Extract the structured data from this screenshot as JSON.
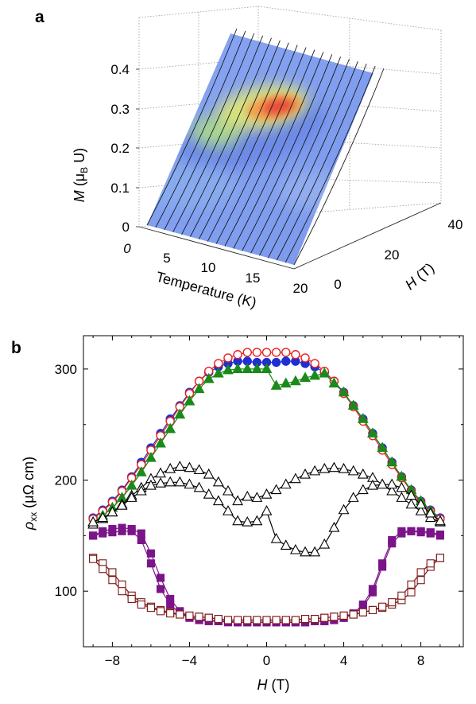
{
  "panel_a": {
    "label": "a",
    "chart_data": {
      "type": "surface",
      "z_axis": {
        "label_italic": "M",
        "label_rest": " (μ",
        "label_sub": "B",
        "label_tail": " U)",
        "range": [
          0,
          0.4
        ],
        "ticks": [
          "0",
          "0.1",
          "0.2",
          "0.3",
          "0.4"
        ]
      },
      "x_axis": {
        "label": "Temperature (K)",
        "range": [
          0,
          20
        ],
        "ticks": [
          "0",
          "5",
          "10",
          "15",
          "20"
        ]
      },
      "y_axis": {
        "label_italic": "H",
        "label_rest": " (T)",
        "range": [
          0,
          40
        ],
        "ticks": [
          "0",
          "20",
          "40"
        ]
      }
    }
  },
  "panel_b": {
    "label": "b",
    "chart_data": {
      "type": "line",
      "xlabel_italic": "H",
      "xlabel_rest": " (T)",
      "ylabel_italic": "ρ",
      "ylabel_sub": "xx",
      "ylabel_rest": " (μΩ cm)",
      "xlim": [
        -9.5,
        10.2
      ],
      "ylim": [
        50,
        330
      ],
      "xticks": [
        -8,
        -4,
        0,
        4,
        8
      ],
      "xtick_labels": [
        "−8",
        "−4",
        "0",
        "4",
        "8"
      ],
      "yticks": [
        100,
        200,
        300
      ],
      "ytick_labels": [
        "100",
        "200",
        "300"
      ],
      "series": [
        {
          "marker": "circle",
          "fill": true,
          "color": "#1f2fd1",
          "x": [
            -9,
            -8.5,
            -8,
            -7.5,
            -7,
            -6.5,
            -6,
            -5.5,
            -5,
            -4.5,
            -4,
            -3.5,
            -3,
            -2.5,
            -2,
            -1.5,
            -1,
            -0.5,
            0,
            0.5,
            1,
            1.5,
            2,
            2.5,
            3,
            3.5,
            4,
            4.5,
            5,
            5.5,
            6,
            6.5,
            7,
            7.5,
            8,
            8.5,
            9
          ],
          "y": [
            166,
            173,
            181,
            191,
            203,
            216,
            229,
            242,
            255,
            267,
            279,
            289,
            297,
            302,
            305,
            307,
            307,
            306,
            306,
            306,
            307,
            307,
            305,
            302,
            297,
            289,
            279,
            267,
            255,
            242,
            229,
            216,
            203,
            191,
            181,
            173,
            166
          ]
        },
        {
          "marker": "circle",
          "fill": false,
          "color": "#e8201e",
          "x": [
            -9,
            -8.5,
            -8,
            -7.5,
            -7,
            -6.5,
            -6,
            -5.5,
            -5,
            -4.5,
            -4,
            -3.5,
            -3,
            -2.5,
            -2,
            -1.5,
            -1,
            -0.5,
            0,
            0.5,
            1,
            1.5,
            2,
            2.5,
            3,
            3.5,
            4,
            4.5,
            5,
            5.5,
            6,
            6.5,
            7,
            7.5,
            8,
            8.5,
            9
          ],
          "y": [
            165,
            172,
            180,
            190,
            202,
            214,
            227,
            240,
            253,
            266,
            278,
            289,
            298,
            305,
            310,
            313,
            315,
            315,
            315,
            315,
            315,
            313,
            310,
            305,
            298,
            289,
            278,
            266,
            253,
            240,
            227,
            214,
            202,
            190,
            180,
            172,
            165
          ]
        },
        {
          "marker": "triangle",
          "fill": true,
          "color": "#1a8a1a",
          "x": [
            -9,
            -8.5,
            -8,
            -7.5,
            -7,
            -6.5,
            -6,
            -5.5,
            -5,
            -4.5,
            -4,
            -3.5,
            -3,
            -2.5,
            -2,
            -1.5,
            -1,
            -0.5,
            0,
            0.5,
            1,
            1.5,
            2,
            2.5,
            3,
            3.5,
            4,
            4.5,
            5,
            5.5,
            6,
            6.5,
            7,
            7.5,
            8,
            8.5,
            9
          ],
          "y": [
            162,
            168,
            175,
            184,
            195,
            207,
            220,
            233,
            246,
            259,
            271,
            282,
            291,
            296,
            299,
            300,
            300,
            300,
            300,
            285,
            287,
            289,
            292,
            294,
            296,
            287,
            279,
            267,
            255,
            242,
            229,
            216,
            203,
            191,
            181,
            172,
            163
          ]
        },
        {
          "marker": "triangle",
          "fill": false,
          "color": "#000000",
          "x": [
            -9,
            -8.5,
            -8,
            -7.5,
            -7,
            -6.5,
            -6,
            -5.5,
            -5,
            -4.5,
            -4,
            -3.5,
            -3,
            -2.5,
            -2,
            -1.5,
            -1,
            -0.5,
            0,
            0.5,
            1,
            1.5,
            2,
            2.5,
            3,
            3.5,
            4,
            4.5,
            5,
            5.5,
            6,
            6.5,
            7,
            7.5,
            8,
            8.5,
            9
          ],
          "y": [
            160,
            165,
            171,
            178,
            186,
            193,
            201,
            206,
            210,
            212,
            211,
            209,
            205,
            198,
            190,
            181,
            185,
            184,
            187,
            191,
            196,
            201,
            205,
            208,
            210,
            211,
            210,
            208,
            205,
            202,
            196,
            190,
            184,
            178,
            172,
            166,
            162
          ]
        },
        {
          "marker": "triangle",
          "fill": false,
          "color": "#000000",
          "x": [
            -9,
            -8.5,
            -8,
            -7.5,
            -7,
            -6.5,
            -6,
            -5.5,
            -5,
            -4.5,
            -4,
            -3.5,
            -3,
            -2.5,
            -2,
            -1.5,
            -1,
            -0.5,
            0,
            0.5,
            1,
            1.5,
            2,
            2.5,
            3,
            3.5,
            4,
            4.5,
            5,
            5.5,
            6,
            6.5,
            7,
            7.5,
            8,
            8.5,
            9
          ],
          "y": [
            162,
            166,
            171,
            177,
            184,
            190,
            195,
            197,
            198,
            198,
            196,
            193,
            187,
            181,
            172,
            163,
            162,
            163,
            172,
            147,
            141,
            137,
            135,
            135,
            142,
            157,
            173,
            184,
            191,
            195,
            196,
            196,
            193,
            186,
            178,
            170,
            163
          ]
        },
        {
          "marker": "square",
          "fill": true,
          "color": "#7b1488",
          "x": [
            -9,
            -8.5,
            -8,
            -7.5,
            -7,
            -6.5,
            -6,
            -5.5,
            -5,
            -4.5,
            -4,
            -3.5,
            -3,
            -2.5,
            -2,
            -1.5,
            -1,
            -0.5,
            0,
            0.5,
            1,
            1.5,
            2,
            2.5,
            3,
            3.5,
            4,
            4.5,
            5,
            5.5,
            6,
            6.5,
            7,
            7.5,
            8,
            8.5,
            9
          ],
          "y": [
            150,
            152,
            153,
            154,
            154,
            146,
            125,
            102,
            88,
            80,
            76,
            74,
            73,
            73,
            72,
            72,
            72,
            72,
            72,
            72,
            72,
            72,
            72,
            73,
            73,
            74,
            76,
            80,
            88,
            102,
            125,
            146,
            154,
            154,
            153,
            152,
            150
          ]
        },
        {
          "marker": "square",
          "fill": true,
          "color": "#7b1488",
          "x": [
            -9,
            -8.5,
            -8,
            -7.5,
            -7,
            -6.5,
            -6,
            -5.5,
            -5,
            -4.5,
            -4,
            -3.5,
            -3,
            -2.5,
            -2,
            -1.5,
            -1,
            -0.5,
            0,
            0.5,
            1,
            1.5,
            2,
            2.5,
            3,
            3.5,
            4,
            4.5,
            5,
            5.5,
            6,
            6.5,
            7,
            7.5,
            8,
            8.5,
            9
          ],
          "y": [
            150,
            154,
            156,
            157,
            156,
            152,
            134,
            112,
            93,
            82,
            77,
            75,
            74,
            73,
            73,
            72,
            72,
            72,
            72,
            72,
            72,
            72,
            72,
            73,
            73,
            74,
            76,
            79,
            86,
            99,
            122,
            143,
            152,
            154,
            154,
            153,
            151
          ]
        },
        {
          "marker": "square",
          "fill": false,
          "color": "#7a1717",
          "x": [
            -9,
            -8.5,
            -8,
            -7.5,
            -7,
            -6.5,
            -6,
            -5.5,
            -5,
            -4.5,
            -4,
            -3.5,
            -3,
            -2.5,
            -2,
            -1.5,
            -1,
            -0.5,
            0,
            0.5,
            1,
            1.5,
            2,
            2.5,
            3,
            3.5,
            4,
            4.5,
            5,
            5.5,
            6,
            6.5,
            7,
            7.5,
            8,
            8.5,
            9
          ],
          "y": [
            130,
            125,
            117,
            106,
            96,
            90,
            86,
            83,
            81,
            79,
            78,
            77,
            76,
            75,
            74,
            74,
            74,
            74,
            74,
            74,
            74,
            74,
            75,
            75,
            76,
            77,
            78,
            79,
            81,
            83,
            85,
            88,
            92,
            99,
            110,
            122,
            130
          ]
        },
        {
          "marker": "square",
          "fill": false,
          "color": "#7a1717",
          "x": [
            -9,
            -8.5,
            -8,
            -7.5,
            -7,
            -6.5,
            -6,
            -5.5,
            -5,
            -4.5,
            -4,
            -3.5,
            -3,
            -2.5,
            -2,
            -1.5,
            -1,
            -0.5,
            0,
            0.5,
            1,
            1.5,
            2,
            2.5,
            3,
            3.5,
            4,
            4.5,
            5,
            5.5,
            6,
            6.5,
            7,
            7.5,
            8,
            8.5,
            9
          ],
          "y": [
            129,
            120,
            110,
            100,
            93,
            88,
            85,
            82,
            80,
            79,
            78,
            77,
            76,
            75,
            74,
            74,
            74,
            74,
            74,
            74,
            74,
            74,
            75,
            75,
            76,
            77,
            78,
            79,
            81,
            83,
            86,
            90,
            96,
            106,
            117,
            125,
            130
          ]
        }
      ]
    }
  }
}
